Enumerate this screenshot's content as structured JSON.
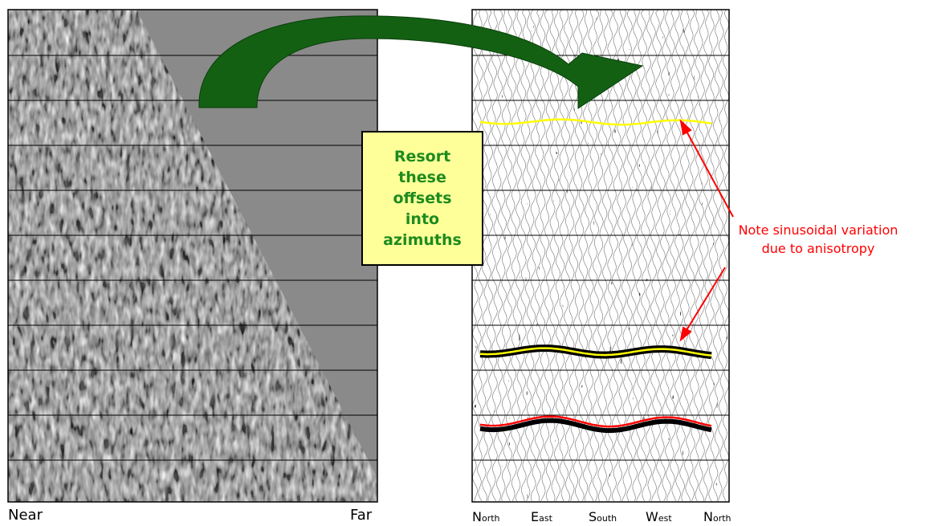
{
  "left_panel": {
    "near_label": "Near",
    "far_label": "Far"
  },
  "right_panel": {
    "azimuths": [
      {
        "initial": "N",
        "rest": "orth"
      },
      {
        "initial": "E",
        "rest": "ast"
      },
      {
        "initial": "S",
        "rest": "outh"
      },
      {
        "initial": "W",
        "rest": "est"
      },
      {
        "initial": "N",
        "rest": "orth"
      }
    ]
  },
  "resort_box": {
    "lines": [
      "Resort",
      "these",
      "offsets",
      "into",
      "azimuths"
    ]
  },
  "annotation": {
    "lines": [
      "Note sinusoidal variation",
      "due to anisotropy"
    ]
  },
  "colors": {
    "arrow_fill": "#136013",
    "box_fill": "#ffff99",
    "box_text": "#1e8b1e",
    "annotation": "#ff0000",
    "horizon_yellow": "#ffff00",
    "horizon_red": "#ff0000",
    "muted_area": "#8a8a8a"
  }
}
